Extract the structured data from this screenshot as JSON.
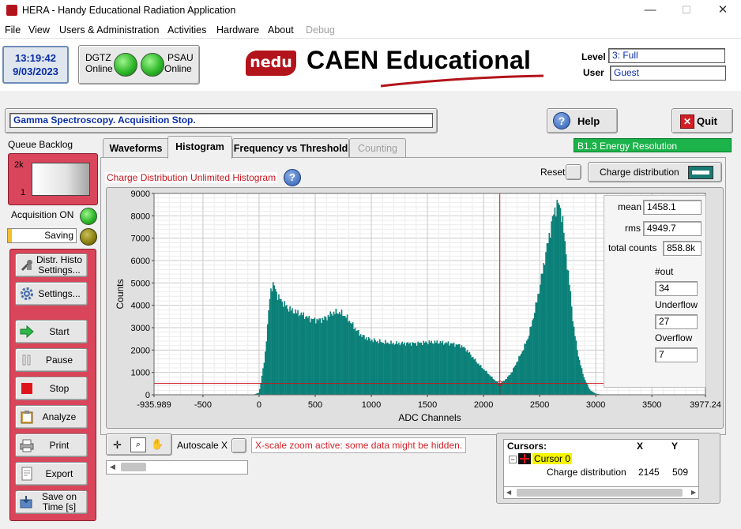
{
  "window": {
    "title": "HERA - Handy Educational Radiation Application",
    "min_glyph": "—",
    "max_glyph": "☐",
    "close_glyph": "✕"
  },
  "menu": [
    "File",
    "View",
    "Users & Administration",
    "Activities",
    "Hardware",
    "About",
    "Debug"
  ],
  "clock": {
    "time": "13:19:42",
    "date": "9/03/2023"
  },
  "devices": [
    {
      "name": "DGTZ",
      "status": "Online"
    },
    {
      "name": "PSAU",
      "status": "Online"
    }
  ],
  "logo": {
    "badge": "nedu",
    "text": "CAEN Educational"
  },
  "user_info": {
    "level_label": "Level",
    "level_value": "3: Full",
    "user_label": "User",
    "user_value": "Guest"
  },
  "status_message": "Gamma Spectroscopy. Acquisition Stop.",
  "help_label": "Help",
  "quit_label": "Quit",
  "activity_badge": "B1.3 Energy Resolution",
  "left_panel": {
    "queue_backlog_label": "Queue Backlog",
    "queue_top": "2k",
    "queue_bottom": "1",
    "acquisition_label": "Acquisition ON",
    "saving_label": "Saving",
    "buttons": [
      {
        "label": "Distr. Histo Settings...",
        "icon": "wrench-icon"
      },
      {
        "label": "Settings...",
        "icon": "gear-icon"
      },
      {
        "label": "Start",
        "icon": "arrow-right-icon"
      },
      {
        "label": "Pause",
        "icon": "pause-icon"
      },
      {
        "label": "Stop",
        "icon": "stop-icon"
      },
      {
        "label": "Analyze",
        "icon": "clipboard-icon"
      },
      {
        "label": "Print",
        "icon": "printer-icon"
      },
      {
        "label": "Export",
        "icon": "export-icon"
      },
      {
        "label": "Save on Time [s]",
        "icon": "save-icon"
      }
    ]
  },
  "tabs": [
    {
      "label": "Waveforms",
      "active": false,
      "disabled": false
    },
    {
      "label": "Histogram",
      "active": true,
      "disabled": false
    },
    {
      "label": "Frequency vs Threshold",
      "active": false,
      "disabled": false
    },
    {
      "label": "Counting",
      "active": false,
      "disabled": true
    }
  ],
  "histogram": {
    "title": "Charge Distribution Unlimited Histogram",
    "reset_label": "Reset",
    "charge_btn_label": "Charge distribution",
    "stats": {
      "mean_label": "mean",
      "mean": "1458.1",
      "rms_label": "rms",
      "rms": "4949.7",
      "total_label": "total counts",
      "total": "858.8k",
      "out_label": "#out",
      "out": "34",
      "underflow_label": "Underflow",
      "underflow": "27",
      "overflow_label": "Overflow",
      "overflow": "7"
    }
  },
  "chart_data": {
    "type": "bar",
    "title": "",
    "xlabel": "ADC Channels",
    "ylabel": "Counts",
    "xlim": [
      -935.989,
      3977.24
    ],
    "ylim": [
      0,
      9000
    ],
    "x_ticks": [
      "-935.989",
      "-500",
      "0",
      "500",
      "1000",
      "1500",
      "2000",
      "2500",
      "3000",
      "3500",
      "3977.24"
    ],
    "y_ticks": [
      "0",
      "1000",
      "2000",
      "3000",
      "4000",
      "5000",
      "6000",
      "7000",
      "8000",
      "9000"
    ],
    "grid": true,
    "color": "#0a8078",
    "cursor": {
      "x": 2145,
      "y": 509,
      "color": "#c8141b"
    },
    "series": [
      {
        "x": [
          -100,
          -50,
          0,
          50,
          80,
          100,
          120,
          140,
          160,
          180,
          200,
          250,
          300,
          350,
          400,
          450,
          500,
          550,
          600,
          650,
          700,
          750,
          800,
          850,
          900,
          950,
          1000,
          1100,
          1200,
          1300,
          1400,
          1500,
          1600,
          1700,
          1750,
          1800,
          1850,
          1900,
          1950,
          2000,
          2050,
          2100,
          2145,
          2200,
          2250,
          2300,
          2350,
          2400,
          2450,
          2500,
          2550,
          2600,
          2630,
          2660,
          2680,
          2700,
          2720,
          2750,
          2780,
          2800,
          2850,
          2900,
          2950,
          3000,
          3050,
          3100,
          3200
        ],
        "y": [
          0,
          5,
          100,
          1600,
          3400,
          4600,
          4950,
          4800,
          4500,
          4300,
          4200,
          3900,
          3750,
          3650,
          3550,
          3400,
          3350,
          3350,
          3450,
          3650,
          3700,
          3600,
          3350,
          3000,
          2700,
          2550,
          2450,
          2350,
          2300,
          2300,
          2300,
          2350,
          2350,
          2300,
          2250,
          2200,
          2000,
          1700,
          1400,
          1150,
          900,
          650,
          500,
          700,
          1000,
          1500,
          2000,
          2600,
          3600,
          4800,
          6200,
          7500,
          8200,
          8550,
          8400,
          8000,
          7000,
          5600,
          4300,
          3100,
          1600,
          700,
          200,
          50,
          10,
          0,
          0
        ]
      }
    ]
  },
  "bottom": {
    "autoscale_label": "Autoscale X",
    "zoom_warning": "X-scale zoom active: some data might be hidden."
  },
  "cursors": {
    "header_label": "Cursors:",
    "col_x": "X",
    "col_y": "Y",
    "cursor_name": "Cursor 0",
    "row_label": "Charge distribution",
    "row_x": "2145",
    "row_y": "509"
  }
}
